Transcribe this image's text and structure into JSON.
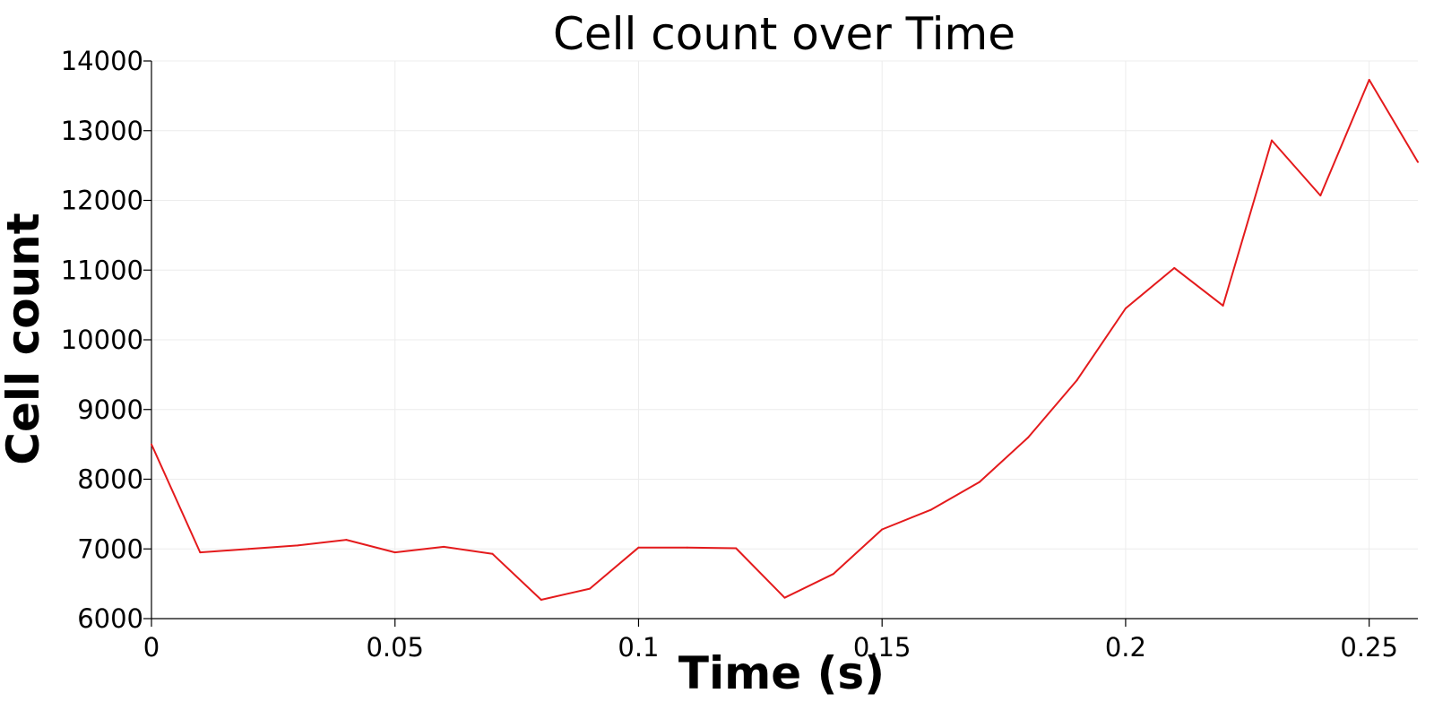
{
  "chart_data": {
    "type": "line",
    "title": "Cell count over Time",
    "xlabel": "Time (s)",
    "ylabel": "Cell count",
    "xlim": [
      0,
      0.26
    ],
    "ylim": [
      6000,
      14000
    ],
    "x_ticks": [
      "0",
      "0.05",
      "0.1",
      "0.15",
      "0.2",
      "0.25"
    ],
    "y_ticks": [
      "6000",
      "7000",
      "8000",
      "9000",
      "10000",
      "11000",
      "12000",
      "13000",
      "14000"
    ],
    "grid": true,
    "series": [
      {
        "color": "#e41a1c",
        "x": [
          0,
          0.01,
          0.02,
          0.03,
          0.04,
          0.05,
          0.06,
          0.07,
          0.08,
          0.09,
          0.1,
          0.11,
          0.12,
          0.13,
          0.14,
          0.15,
          0.16,
          0.17,
          0.18,
          0.19,
          0.2,
          0.21,
          0.22,
          0.23,
          0.24,
          0.25,
          0.26
        ],
        "values": [
          8500,
          6950,
          7000,
          7050,
          7130,
          6950,
          7030,
          6930,
          6270,
          6430,
          7020,
          7020,
          7010,
          6300,
          6640,
          7280,
          7560,
          7960,
          8600,
          9420,
          10450,
          11030,
          10490,
          12860,
          12070,
          13730,
          12550
        ]
      }
    ]
  }
}
